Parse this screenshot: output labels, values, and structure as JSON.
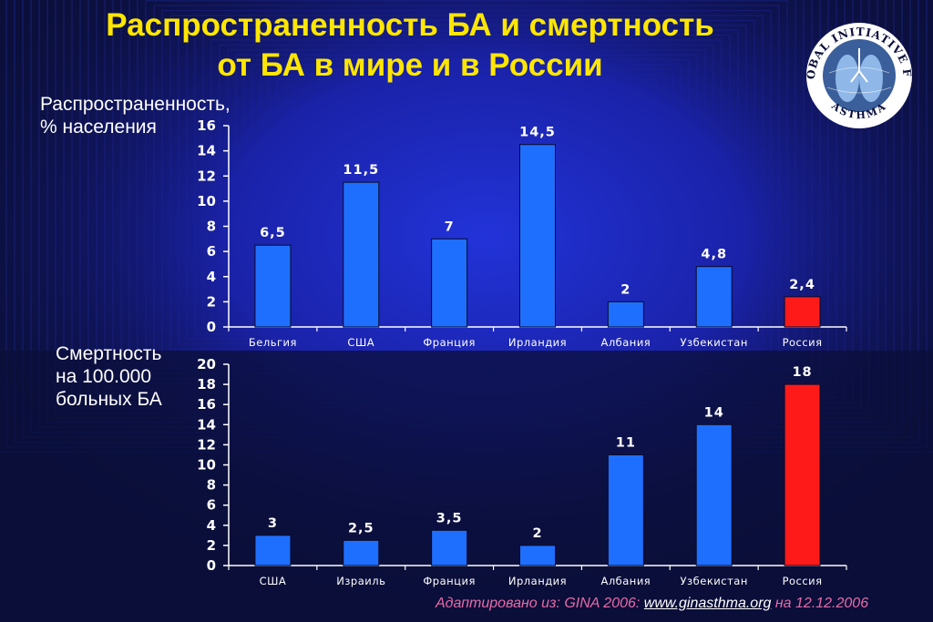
{
  "title": {
    "line1": "Распространенность БА и смертность",
    "line2": "от БА в мире и в России"
  },
  "logo": {
    "text_top": "GLOBAL INITIATIVE FOR",
    "text_bottom": "ASTHMA"
  },
  "colors": {
    "background": "#0b0f3a",
    "title": "#ffe600",
    "bar": "#1f6fff",
    "bar_highlight": "#ff1a1a",
    "source_text": "#e86aa8"
  },
  "chart_data": [
    {
      "type": "bar",
      "ylabel_line1": "Распространенность,",
      "ylabel_line2": "% населения",
      "categories": [
        "Бельгия",
        "США",
        "Франция",
        "Ирландия",
        "Албания",
        "Узбекистан",
        "Россия"
      ],
      "values": [
        6.5,
        11.5,
        7,
        14.5,
        2,
        4.8,
        2.4
      ],
      "value_labels": [
        "6,5",
        "11,5",
        "7",
        "14,5",
        "2",
        "4,8",
        "2,4"
      ],
      "ylim": [
        0,
        16
      ],
      "yticks": [
        0,
        2,
        4,
        6,
        8,
        10,
        12,
        14,
        16
      ],
      "highlight_category": "Россия",
      "grid": false,
      "legend": "none"
    },
    {
      "type": "bar",
      "ylabel_line1": "Смертность",
      "ylabel_line2": "на 100.000",
      "ylabel_line3": "больных БА",
      "categories": [
        "США",
        "Израиль",
        "Франция",
        "Ирландия",
        "Албания",
        "Узбекистан",
        "Россия"
      ],
      "values": [
        3,
        2.5,
        3.5,
        2,
        11,
        14,
        18
      ],
      "value_labels": [
        "3",
        "2,5",
        "3,5",
        "2",
        "11",
        "14",
        "18"
      ],
      "ylim": [
        0,
        20
      ],
      "yticks": [
        0,
        2,
        4,
        6,
        8,
        10,
        12,
        14,
        16,
        18,
        20
      ],
      "highlight_category": "Россия",
      "grid": false,
      "legend": "none"
    }
  ],
  "source": {
    "prefix": "Адаптировано из: GINA 2006: ",
    "link": "www.ginasthma.org",
    "suffix": " на 12.12.2006"
  }
}
